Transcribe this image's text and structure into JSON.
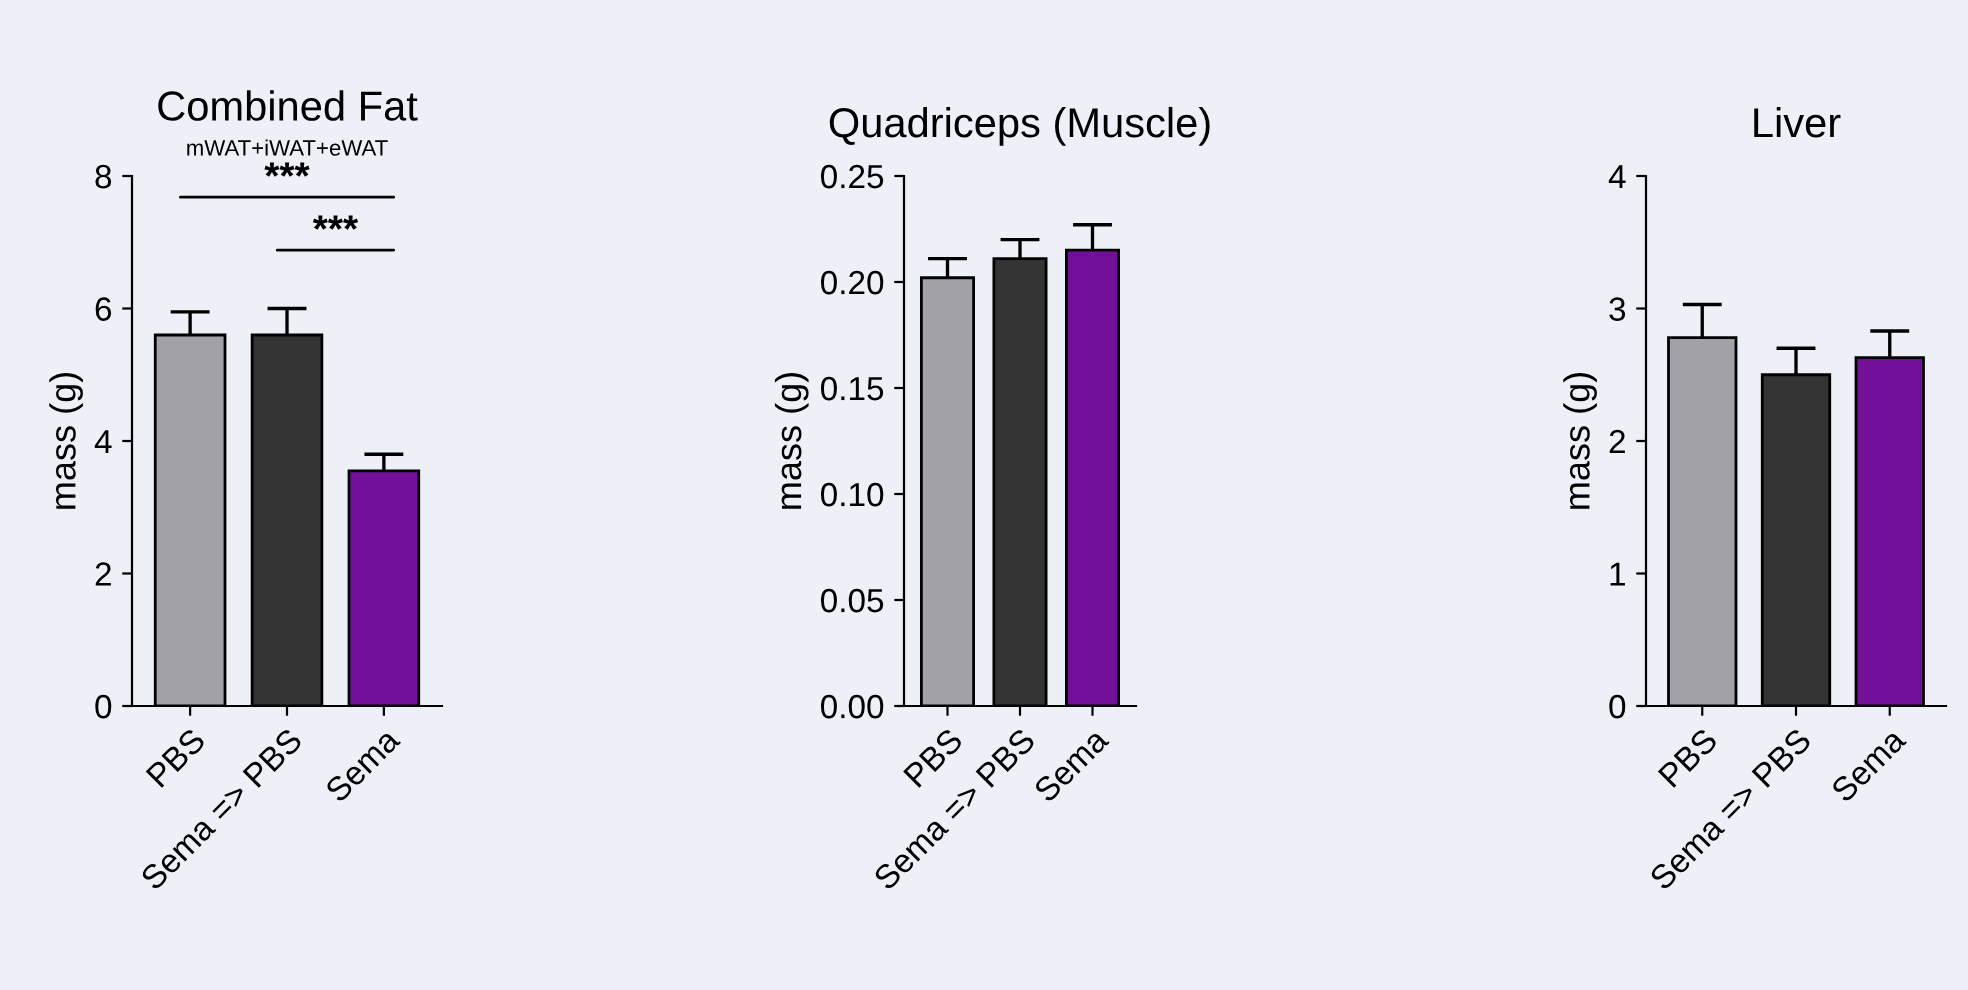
{
  "chart_data": [
    {
      "type": "bar",
      "title": "Combined Fat",
      "subtitle": "mWAT+iWAT+eWAT",
      "ylabel": "mass (g)",
      "categories": [
        "PBS",
        "Sema => PBS",
        "Sema"
      ],
      "values": [
        5.6,
        5.6,
        3.55
      ],
      "colors": [
        "#a2a1a6",
        "#343434",
        "#72109a"
      ],
      "errors": [
        0.35,
        0.4,
        0.25
      ],
      "ylim": [
        0,
        8
      ],
      "yticks": [
        0,
        2,
        4,
        6,
        8
      ],
      "grid": false,
      "annotations": [
        "***",
        "***"
      ]
    },
    {
      "type": "bar",
      "title": "Quadriceps (Muscle)",
      "ylabel": "mass (g)",
      "categories": [
        "PBS",
        "Sema => PBS",
        "Sema"
      ],
      "values": [
        0.202,
        0.211,
        0.215
      ],
      "colors": [
        "#a2a1a6",
        "#343434",
        "#72109a"
      ],
      "errors": [
        0.009,
        0.009,
        0.012
      ],
      "ylim": [
        0,
        0.25
      ],
      "yticks": [
        {
          "value": 0,
          "label": "0.00"
        },
        {
          "value": 0.05,
          "label": "0.05"
        },
        {
          "value": 0.1,
          "label": "0.10"
        },
        {
          "value": 0.15,
          "label": "0.15"
        },
        {
          "value": 0.2,
          "label": "0.20"
        },
        {
          "value": 0.25,
          "label": "0.25"
        }
      ],
      "grid": false
    },
    {
      "type": "bar",
      "title": "Liver",
      "ylabel": "mass (g)",
      "categories": [
        "PBS",
        "Sema => PBS",
        "Sema"
      ],
      "values": [
        2.78,
        2.5,
        2.63
      ],
      "colors": [
        "#a2a1a6",
        "#343434",
        "#72109a"
      ],
      "errors": [
        0.25,
        0.2,
        0.2
      ],
      "ylim": [
        0,
        4
      ],
      "yticks": [
        0,
        1,
        2,
        3,
        4
      ],
      "grid": false
    }
  ]
}
